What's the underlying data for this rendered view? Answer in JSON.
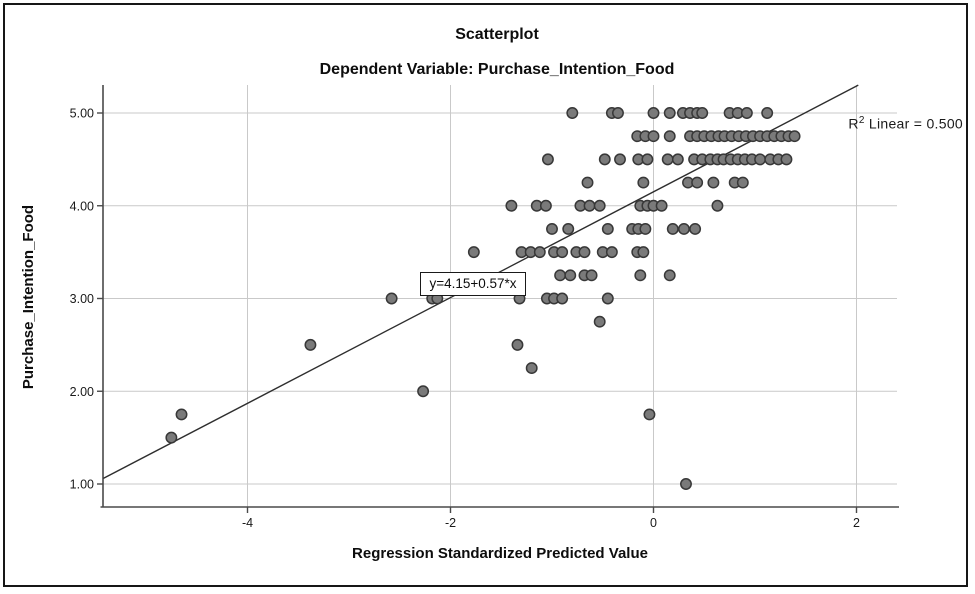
{
  "chart": {
    "title": "Scatterplot",
    "subtitle": "Dependent Variable: Purchase_Intention_Food",
    "xlabel": "Regression Standardized Predicted Value",
    "ylabel": "Purchase_Intention_Food",
    "equation": "y=4.15+0.57*x",
    "r2_base": "R",
    "r2_sup": "2",
    "r2_rest": " Linear = 0.500"
  },
  "colors": {
    "point_fill": "#7a7a7a",
    "point_stroke": "#383838",
    "grid": "#c9c9c9",
    "axis": "#4a4a4a",
    "regression_line": "#2e2e2e",
    "text": "#1a1a1a",
    "border": "#161616"
  },
  "chart_data": {
    "type": "scatter",
    "title": "Scatterplot",
    "subtitle": "Dependent Variable: Purchase_Intention_Food",
    "xlabel": "Regression Standardized Predicted Value",
    "ylabel": "Purchase_Intention_Food",
    "xlim": [
      -5.42,
      2.4
    ],
    "ylim": [
      0.75,
      5.3
    ],
    "xticks": [
      -4,
      -2,
      0,
      2
    ],
    "xtick_labels": [
      "-4",
      "-2",
      "0",
      "2"
    ],
    "yticks": [
      1,
      2,
      3,
      4,
      5
    ],
    "ytick_labels": [
      "1.00",
      "2.00",
      "3.00",
      "4.00",
      "5.00"
    ],
    "grid": true,
    "legend": null,
    "regression": {
      "intercept": 4.15,
      "slope": 0.57,
      "equation": "y=4.15+0.57*x",
      "r2": 0.5
    },
    "points": [
      [
        -0.8,
        5.0
      ],
      [
        -0.41,
        5.0
      ],
      [
        -0.35,
        5.0
      ],
      [
        0.0,
        5.0
      ],
      [
        0.16,
        5.0
      ],
      [
        0.29,
        5.0
      ],
      [
        0.36,
        5.0
      ],
      [
        0.43,
        5.0
      ],
      [
        0.48,
        5.0
      ],
      [
        0.75,
        5.0
      ],
      [
        0.83,
        5.0
      ],
      [
        0.92,
        5.0
      ],
      [
        1.12,
        5.0
      ],
      [
        -0.16,
        4.75
      ],
      [
        -0.08,
        4.75
      ],
      [
        0.0,
        4.75
      ],
      [
        0.16,
        4.75
      ],
      [
        0.36,
        4.75
      ],
      [
        0.43,
        4.75
      ],
      [
        0.5,
        4.75
      ],
      [
        0.57,
        4.75
      ],
      [
        0.64,
        4.75
      ],
      [
        0.7,
        4.75
      ],
      [
        0.77,
        4.75
      ],
      [
        0.84,
        4.75
      ],
      [
        0.91,
        4.75
      ],
      [
        0.98,
        4.75
      ],
      [
        1.05,
        4.75
      ],
      [
        1.12,
        4.75
      ],
      [
        1.19,
        4.75
      ],
      [
        1.26,
        4.75
      ],
      [
        1.33,
        4.75
      ],
      [
        1.39,
        4.75
      ],
      [
        -1.04,
        4.5
      ],
      [
        -0.48,
        4.5
      ],
      [
        -0.33,
        4.5
      ],
      [
        -0.15,
        4.5
      ],
      [
        -0.06,
        4.5
      ],
      [
        0.14,
        4.5
      ],
      [
        0.24,
        4.5
      ],
      [
        0.4,
        4.5
      ],
      [
        0.48,
        4.5
      ],
      [
        0.56,
        4.5
      ],
      [
        0.63,
        4.5
      ],
      [
        0.69,
        4.5
      ],
      [
        0.76,
        4.5
      ],
      [
        0.83,
        4.5
      ],
      [
        0.9,
        4.5
      ],
      [
        0.97,
        4.5
      ],
      [
        1.05,
        4.5
      ],
      [
        1.15,
        4.5
      ],
      [
        1.23,
        4.5
      ],
      [
        1.31,
        4.5
      ],
      [
        -0.65,
        4.25
      ],
      [
        -0.1,
        4.25
      ],
      [
        0.34,
        4.25
      ],
      [
        0.43,
        4.25
      ],
      [
        0.59,
        4.25
      ],
      [
        0.8,
        4.25
      ],
      [
        0.88,
        4.25
      ],
      [
        -1.4,
        4.0
      ],
      [
        -1.15,
        4.0
      ],
      [
        -1.06,
        4.0
      ],
      [
        -0.72,
        4.0
      ],
      [
        -0.63,
        4.0
      ],
      [
        -0.53,
        4.0
      ],
      [
        -0.13,
        4.0
      ],
      [
        -0.06,
        4.0
      ],
      [
        0.0,
        4.0
      ],
      [
        0.08,
        4.0
      ],
      [
        0.63,
        4.0
      ],
      [
        -1.0,
        3.75
      ],
      [
        -0.84,
        3.75
      ],
      [
        -0.45,
        3.75
      ],
      [
        -0.21,
        3.75
      ],
      [
        -0.15,
        3.75
      ],
      [
        -0.08,
        3.75
      ],
      [
        0.19,
        3.75
      ],
      [
        0.3,
        3.75
      ],
      [
        0.41,
        3.75
      ],
      [
        -1.77,
        3.5
      ],
      [
        -1.3,
        3.5
      ],
      [
        -1.21,
        3.5
      ],
      [
        -1.12,
        3.5
      ],
      [
        -0.98,
        3.5
      ],
      [
        -0.9,
        3.5
      ],
      [
        -0.76,
        3.5
      ],
      [
        -0.68,
        3.5
      ],
      [
        -0.5,
        3.5
      ],
      [
        -0.41,
        3.5
      ],
      [
        -0.16,
        3.5
      ],
      [
        -0.1,
        3.5
      ],
      [
        -0.92,
        3.25
      ],
      [
        -0.82,
        3.25
      ],
      [
        -0.68,
        3.25
      ],
      [
        -0.61,
        3.25
      ],
      [
        -0.13,
        3.25
      ],
      [
        0.16,
        3.25
      ],
      [
        -2.58,
        3.0
      ],
      [
        -2.18,
        3.0
      ],
      [
        -2.13,
        3.0
      ],
      [
        -1.32,
        3.0
      ],
      [
        -1.05,
        3.0
      ],
      [
        -0.98,
        3.0
      ],
      [
        -0.9,
        3.0
      ],
      [
        -0.45,
        3.0
      ],
      [
        -0.53,
        2.75
      ],
      [
        -3.38,
        2.5
      ],
      [
        -1.34,
        2.5
      ],
      [
        -1.2,
        2.25
      ],
      [
        -2.27,
        2.0
      ],
      [
        -4.65,
        1.75
      ],
      [
        -0.04,
        1.75
      ],
      [
        -4.75,
        1.5
      ],
      [
        0.32,
        1.0
      ]
    ]
  }
}
